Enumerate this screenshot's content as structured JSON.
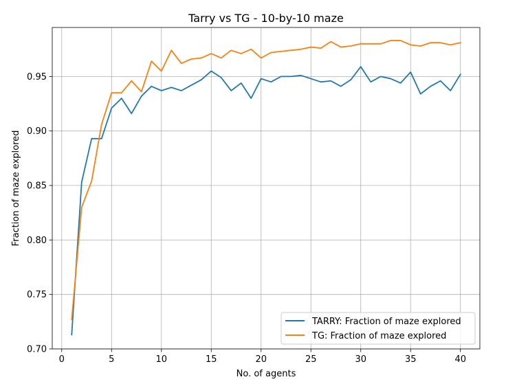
{
  "chart_data": {
    "type": "line",
    "title": "Tarry vs TG - 10-by-10 maze",
    "xlabel": "No. of agents",
    "ylabel": "Fraction of maze explored",
    "xlim": [
      -0.95,
      41.95
    ],
    "ylim": [
      0.7,
      0.995
    ],
    "xticks": [
      0,
      5,
      10,
      15,
      20,
      25,
      30,
      35,
      40
    ],
    "xtick_labels": [
      "0",
      "5",
      "10",
      "15",
      "20",
      "25",
      "30",
      "35",
      "40"
    ],
    "yticks": [
      0.7,
      0.75,
      0.8,
      0.85,
      0.9,
      0.95
    ],
    "ytick_labels": [
      "0.70",
      "0.75",
      "0.80",
      "0.85",
      "0.90",
      "0.95"
    ],
    "grid": true,
    "legend_position": "lower-right",
    "x": [
      1,
      2,
      3,
      4,
      5,
      6,
      7,
      8,
      9,
      10,
      11,
      12,
      13,
      14,
      15,
      16,
      17,
      18,
      19,
      20,
      21,
      22,
      23,
      24,
      25,
      26,
      27,
      28,
      29,
      30,
      31,
      32,
      33,
      34,
      35,
      36,
      37,
      38,
      39,
      40
    ],
    "series": [
      {
        "name": "TARRY: Fraction of maze explored",
        "color": "#1f77b4",
        "values": [
          0.713,
          0.853,
          0.893,
          0.893,
          0.921,
          0.93,
          0.916,
          0.932,
          0.941,
          0.937,
          0.94,
          0.937,
          0.942,
          0.947,
          0.955,
          0.949,
          0.937,
          0.944,
          0.93,
          0.948,
          0.945,
          0.95,
          0.95,
          0.951,
          0.948,
          0.945,
          0.946,
          0.941,
          0.947,
          0.959,
          0.945,
          0.95,
          0.948,
          0.944,
          0.954,
          0.934,
          0.941,
          0.946,
          0.937,
          0.952
        ]
      },
      {
        "name": "TG: Fraction of maze explored",
        "color": "#ff7f0e",
        "values": [
          0.727,
          0.83,
          0.854,
          0.906,
          0.935,
          0.935,
          0.946,
          0.936,
          0.964,
          0.955,
          0.974,
          0.962,
          0.966,
          0.967,
          0.971,
          0.967,
          0.974,
          0.971,
          0.975,
          0.967,
          0.972,
          0.973,
          0.974,
          0.975,
          0.977,
          0.976,
          0.982,
          0.977,
          0.978,
          0.98,
          0.98,
          0.98,
          0.983,
          0.983,
          0.979,
          0.978,
          0.981,
          0.981,
          0.979,
          0.981
        ]
      }
    ]
  }
}
